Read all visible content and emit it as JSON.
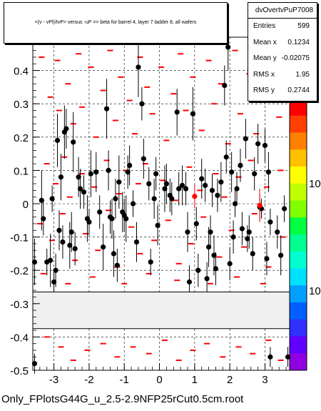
{
  "chart_data": {
    "type": "scatter",
    "title": "<(v - vPl)/tvP> versus -uP => beta for barrel 4, layer 7 ladder 8, all wafers",
    "xlabel": "",
    "ylabel": "",
    "xlim": [
      -3.6,
      3.7
    ],
    "ylim": [
      -0.5,
      0.5
    ],
    "x_ticks": [
      "-3",
      "-2",
      "-1",
      "0",
      "1",
      "2",
      "3"
    ],
    "y_ticks": [
      "-0.5",
      "-0.4",
      "-0.3",
      "-0.2",
      "-0.1",
      "0",
      "0.1",
      "0.2",
      "0.3",
      "0.4"
    ],
    "grid": true,
    "excluded_band": [
      -0.375,
      -0.265
    ],
    "colz_labels": [
      "10",
      "10"
    ],
    "marker_color": "#000000",
    "highlight_color": "#ff0000",
    "series": [
      {
        "name": "",
        "points": [
          {
            "x": -3.55,
            "y": -0.175,
            "err": 0.07
          },
          {
            "x": -3.35,
            "y": 0.01,
            "err": 0.09
          },
          {
            "x": -3.3,
            "y": -0.045,
            "err": 0.05
          },
          {
            "x": -3.2,
            "y": -0.175,
            "err": 0.04
          },
          {
            "x": -3.1,
            "y": -0.17,
            "err": 0.08
          },
          {
            "x": -3.05,
            "y": 0.015,
            "err": 0.04
          },
          {
            "x": -3.0,
            "y": -0.235,
            "err": 0.03
          },
          {
            "x": -2.95,
            "y": -0.2,
            "err": 0.05
          },
          {
            "x": -2.9,
            "y": 0.19,
            "err": 0.08
          },
          {
            "x": -2.85,
            "y": -0.08,
            "err": 0.06
          },
          {
            "x": -2.8,
            "y": 0.08,
            "err": 0.07
          },
          {
            "x": -2.75,
            "y": -0.115,
            "err": 0.05
          },
          {
            "x": -2.7,
            "y": 0.215,
            "err": 0.08
          },
          {
            "x": -2.65,
            "y": 0.225,
            "err": 0.06
          },
          {
            "x": -2.55,
            "y": -0.125,
            "err": 0.07
          },
          {
            "x": -2.5,
            "y": -0.085,
            "err": 0.06
          },
          {
            "x": -2.45,
            "y": 0.185,
            "err": 0.09
          },
          {
            "x": -2.4,
            "y": -0.135,
            "err": 0.05
          },
          {
            "x": -2.3,
            "y": 0.08,
            "err": 0.06
          },
          {
            "x": -2.25,
            "y": 0.045,
            "err": 0.06
          },
          {
            "x": -2.15,
            "y": 0.035,
            "err": 0.05
          },
          {
            "x": -2.05,
            "y": -0.045,
            "err": 0.07
          },
          {
            "x": -2.0,
            "y": -0.055,
            "err": 0.04
          },
          {
            "x": -1.95,
            "y": 0.09,
            "err": 0.07
          },
          {
            "x": -1.8,
            "y": 0.095,
            "err": 0.06
          },
          {
            "x": -1.7,
            "y": -0.025,
            "err": 0.05
          },
          {
            "x": -1.6,
            "y": -0.13,
            "err": 0.07
          },
          {
            "x": -1.5,
            "y": 0.285,
            "err": 0.09
          },
          {
            "x": -1.45,
            "y": 0.1,
            "err": 0.06
          },
          {
            "x": -1.4,
            "y": -0.04,
            "err": 0.05
          },
          {
            "x": -1.35,
            "y": -0.045,
            "err": 0.06
          },
          {
            "x": -1.3,
            "y": -0.15,
            "err": 0.07
          },
          {
            "x": -1.25,
            "y": 0.015,
            "err": 0.06
          },
          {
            "x": -1.2,
            "y": -0.185,
            "err": 0.05
          },
          {
            "x": -1.15,
            "y": 0.065,
            "err": 0.08
          },
          {
            "x": -1.05,
            "y": -0.025,
            "err": 0.06
          },
          {
            "x": -1.0,
            "y": -0.035,
            "err": 0.05
          },
          {
            "x": -0.95,
            "y": -0.045,
            "err": 0.07
          },
          {
            "x": -0.9,
            "y": 0.095,
            "err": 0.05
          },
          {
            "x": -0.85,
            "y": 0.115,
            "err": 0.06
          },
          {
            "x": -0.75,
            "y": 0.0,
            "err": 0.04
          },
          {
            "x": -0.65,
            "y": -0.115,
            "err": 0.06
          },
          {
            "x": -0.6,
            "y": 0.41,
            "err": 0.09
          },
          {
            "x": -0.5,
            "y": 0.3,
            "err": 0.05
          },
          {
            "x": -0.45,
            "y": 0.135,
            "err": 0.06
          },
          {
            "x": -0.3,
            "y": 0.06,
            "err": 0.05
          },
          {
            "x": -0.25,
            "y": -0.175,
            "err": 0.04
          },
          {
            "x": -0.15,
            "y": 0.015,
            "err": 0.06
          },
          {
            "x": -0.1,
            "y": 0.09,
            "err": 0.05
          },
          {
            "x": -0.05,
            "y": -0.065,
            "err": 0.06
          },
          {
            "x": 0.15,
            "y": 0.045,
            "err": 0.07
          },
          {
            "x": 0.2,
            "y": 0.06,
            "err": 0.06
          },
          {
            "x": 0.3,
            "y": 0.025,
            "err": 0.05
          },
          {
            "x": 0.35,
            "y": 0.015,
            "err": 0.05
          },
          {
            "x": 0.5,
            "y": 0.275,
            "err": 0.07
          },
          {
            "x": 0.55,
            "y": 0.045,
            "err": 0.05
          },
          {
            "x": 0.65,
            "y": 0.055,
            "err": 0.06
          },
          {
            "x": 0.75,
            "y": 0.045,
            "err": 0.05
          },
          {
            "x": 0.8,
            "y": -0.085,
            "err": 0.06
          },
          {
            "x": 0.85,
            "y": -0.235,
            "err": 0.05
          },
          {
            "x": 0.95,
            "y": 0.27,
            "err": 0.08
          },
          {
            "x": 1.05,
            "y": -0.06,
            "err": 0.05
          },
          {
            "x": 1.1,
            "y": -0.2,
            "err": 0.05
          },
          {
            "x": 1.2,
            "y": 0.075,
            "err": 0.06
          },
          {
            "x": 1.3,
            "y": 0.055,
            "err": 0.05
          },
          {
            "x": 1.35,
            "y": -0.225,
            "err": 0.05
          },
          {
            "x": 1.4,
            "y": -0.13,
            "err": 0.06
          },
          {
            "x": 1.45,
            "y": -0.085,
            "err": 0.05
          },
          {
            "x": 1.5,
            "y": 0.04,
            "err": 0.05
          },
          {
            "x": 1.55,
            "y": -0.155,
            "err": 0.06
          },
          {
            "x": 1.6,
            "y": -0.195,
            "err": 0.05
          },
          {
            "x": 1.65,
            "y": 0.025,
            "err": 0.05
          },
          {
            "x": 1.75,
            "y": 0.065,
            "err": 0.06
          },
          {
            "x": 1.85,
            "y": 0.355,
            "err": 0.06
          },
          {
            "x": 1.9,
            "y": 0.14,
            "err": 0.05
          },
          {
            "x": 1.95,
            "y": 0.47,
            "err": 0.07
          },
          {
            "x": 2.0,
            "y": -0.18,
            "err": 0.05
          },
          {
            "x": 2.05,
            "y": 0.095,
            "err": 0.06
          },
          {
            "x": 2.1,
            "y": -0.1,
            "err": 0.05
          },
          {
            "x": 2.15,
            "y": 0.0,
            "err": 0.04
          },
          {
            "x": 2.2,
            "y": 0.045,
            "err": 0.05
          },
          {
            "x": 2.3,
            "y": 0.115,
            "err": 0.05
          },
          {
            "x": 2.35,
            "y": -0.075,
            "err": 0.05
          },
          {
            "x": 2.45,
            "y": 0.195,
            "err": 0.06
          },
          {
            "x": 2.5,
            "y": -0.105,
            "err": 0.04
          },
          {
            "x": 2.55,
            "y": -0.085,
            "err": 0.05
          },
          {
            "x": 2.65,
            "y": -0.15,
            "err": 0.05
          },
          {
            "x": 2.7,
            "y": 0.09,
            "err": 0.05
          },
          {
            "x": 2.8,
            "y": 0.18,
            "err": 0.06
          },
          {
            "x": 2.85,
            "y": -0.01,
            "err": 0.04
          },
          {
            "x": 2.9,
            "y": -0.015,
            "err": 0.03
          },
          {
            "x": 3.0,
            "y": 0.175,
            "err": 0.05
          },
          {
            "x": 3.05,
            "y": -0.165,
            "err": 0.05
          },
          {
            "x": 3.1,
            "y": 0.095,
            "err": 0.06
          },
          {
            "x": 3.15,
            "y": -0.055,
            "err": 0.04
          },
          {
            "x": 3.35,
            "y": -0.085,
            "err": 0.05
          },
          {
            "x": 3.45,
            "y": -0.155,
            "err": 0.06
          },
          {
            "x": 3.55,
            "y": -0.015,
            "err": 0.04
          },
          {
            "x": 3.65,
            "y": -0.46,
            "err": 0.03
          },
          {
            "x": -3.55,
            "y": -0.48,
            "err": 0.03
          },
          {
            "x": 3.15,
            "y": -0.46,
            "err": 0.03
          }
        ]
      },
      {
        "name": "",
        "highlight": true,
        "points": [
          {
            "x": 1.0,
            "y": 0.022,
            "err": 0.035
          },
          {
            "x": 2.85,
            "y": -0.005,
            "err": 0.05
          }
        ]
      }
    ],
    "dashes": [
      {
        "x": -3.35,
        "y": 0.44
      },
      {
        "x": -3.1,
        "y": 0.32
      },
      {
        "x": -2.9,
        "y": 0.43
      },
      {
        "x": -2.85,
        "y": 0.28
      },
      {
        "x": -2.7,
        "y": 0.14
      },
      {
        "x": -2.6,
        "y": 0.36
      },
      {
        "x": -2.45,
        "y": 0.24
      },
      {
        "x": -2.3,
        "y": 0.45
      },
      {
        "x": -2.2,
        "y": 0.29
      },
      {
        "x": -1.95,
        "y": 0.41
      },
      {
        "x": -1.8,
        "y": 0.2
      },
      {
        "x": -1.6,
        "y": 0.34
      },
      {
        "x": -1.4,
        "y": 0.46
      },
      {
        "x": -1.25,
        "y": 0.25
      },
      {
        "x": -1.1,
        "y": 0.38
      },
      {
        "x": -0.85,
        "y": 0.31
      },
      {
        "x": -0.7,
        "y": 0.21
      },
      {
        "x": -0.55,
        "y": 0.44
      },
      {
        "x": -0.35,
        "y": 0.35
      },
      {
        "x": -0.2,
        "y": 0.27
      },
      {
        "x": 0.05,
        "y": 0.41
      },
      {
        "x": 0.2,
        "y": 0.19
      },
      {
        "x": 0.4,
        "y": 0.33
      },
      {
        "x": 0.6,
        "y": 0.45
      },
      {
        "x": 0.75,
        "y": 0.28
      },
      {
        "x": 0.95,
        "y": 0.38
      },
      {
        "x": 1.2,
        "y": 0.22
      },
      {
        "x": 1.4,
        "y": 0.43
      },
      {
        "x": 1.55,
        "y": 0.3
      },
      {
        "x": 1.75,
        "y": 0.36
      },
      {
        "x": 1.95,
        "y": 0.18
      },
      {
        "x": 2.15,
        "y": 0.46
      },
      {
        "x": 2.3,
        "y": 0.27
      },
      {
        "x": 2.55,
        "y": 0.39
      },
      {
        "x": 2.75,
        "y": 0.21
      },
      {
        "x": 2.95,
        "y": 0.33
      },
      {
        "x": 3.2,
        "y": 0.44
      },
      {
        "x": 3.4,
        "y": 0.26
      },
      {
        "x": -3.2,
        "y": 0.12
      },
      {
        "x": -2.95,
        "y": 0.06
      },
      {
        "x": -2.55,
        "y": 0.02
      },
      {
        "x": -2.2,
        "y": 0.09
      },
      {
        "x": -1.85,
        "y": 0.05
      },
      {
        "x": -1.5,
        "y": 0.13
      },
      {
        "x": -1.15,
        "y": 0.03
      },
      {
        "x": -0.95,
        "y": 0.1
      },
      {
        "x": -0.6,
        "y": 0.06
      },
      {
        "x": -0.4,
        "y": 0.12
      },
      {
        "x": 0.1,
        "y": 0.07
      },
      {
        "x": 0.45,
        "y": 0.01
      },
      {
        "x": 0.85,
        "y": 0.11
      },
      {
        "x": 1.15,
        "y": 0.04
      },
      {
        "x": 1.6,
        "y": 0.09
      },
      {
        "x": 1.85,
        "y": 0.02
      },
      {
        "x": 2.25,
        "y": 0.08
      },
      {
        "x": 2.6,
        "y": 0.13
      },
      {
        "x": 3.05,
        "y": 0.05
      },
      {
        "x": 3.45,
        "y": 0.1
      },
      {
        "x": -3.4,
        "y": -0.06
      },
      {
        "x": -3.05,
        "y": -0.11
      },
      {
        "x": -2.75,
        "y": -0.03
      },
      {
        "x": -2.4,
        "y": -0.17
      },
      {
        "x": -2.1,
        "y": -0.09
      },
      {
        "x": -1.75,
        "y": -0.14
      },
      {
        "x": -1.45,
        "y": -0.02
      },
      {
        "x": -1.2,
        "y": -0.19
      },
      {
        "x": -0.8,
        "y": -0.07
      },
      {
        "x": -0.55,
        "y": -0.15
      },
      {
        "x": -0.15,
        "y": -0.11
      },
      {
        "x": 0.25,
        "y": -0.05
      },
      {
        "x": 0.55,
        "y": -0.18
      },
      {
        "x": 0.9,
        "y": -0.12
      },
      {
        "x": 1.25,
        "y": -0.04
      },
      {
        "x": 1.7,
        "y": -0.16
      },
      {
        "x": 2.05,
        "y": -0.08
      },
      {
        "x": 2.4,
        "y": -0.13
      },
      {
        "x": 2.7,
        "y": -0.03
      },
      {
        "x": 3.1,
        "y": -0.19
      },
      {
        "x": 3.5,
        "y": -0.1
      },
      {
        "x": -3.3,
        "y": -0.21
      },
      {
        "x": -2.6,
        "y": -0.24
      },
      {
        "x": -1.9,
        "y": -0.22
      },
      {
        "x": -1.0,
        "y": -0.24
      },
      {
        "x": -0.3,
        "y": -0.21
      },
      {
        "x": 0.5,
        "y": -0.23
      },
      {
        "x": 1.45,
        "y": -0.24
      },
      {
        "x": 2.2,
        "y": -0.22
      },
      {
        "x": 2.95,
        "y": -0.24
      },
      {
        "x": -3.2,
        "y": -0.4
      },
      {
        "x": -2.8,
        "y": -0.43
      },
      {
        "x": -2.45,
        "y": -0.47
      },
      {
        "x": -2.05,
        "y": -0.44
      },
      {
        "x": -1.6,
        "y": -0.42
      },
      {
        "x": -1.2,
        "y": -0.46
      },
      {
        "x": -0.75,
        "y": -0.43
      },
      {
        "x": -0.3,
        "y": -0.45
      },
      {
        "x": 0.15,
        "y": -0.41
      },
      {
        "x": 0.55,
        "y": -0.47
      },
      {
        "x": 0.95,
        "y": -0.44
      },
      {
        "x": 1.35,
        "y": -0.42
      },
      {
        "x": 1.8,
        "y": -0.46
      },
      {
        "x": 2.25,
        "y": -0.43
      },
      {
        "x": 2.65,
        "y": -0.45
      },
      {
        "x": 3.1,
        "y": -0.41
      },
      {
        "x": 3.45,
        "y": -0.47
      }
    ]
  },
  "title_text": "<(v - vPl)/tvP> versus -uP => beta for barrel 4, layer 7 ladder 8, all wafers",
  "stats": {
    "name": "dvOvertvPuP7008",
    "rows": [
      {
        "key": "Entries",
        "value": "599"
      },
      {
        "key": "Mean x",
        "value": "0.1234"
      },
      {
        "key": "Mean y",
        "value": "-0.02075"
      },
      {
        "key": "RMS x",
        "value": "1.95"
      },
      {
        "key": "RMS y",
        "value": "0.2744"
      }
    ]
  },
  "footer": "Only_FPlotsG44G_u_2.5-2.9NFP25rCut0.5cm.root"
}
